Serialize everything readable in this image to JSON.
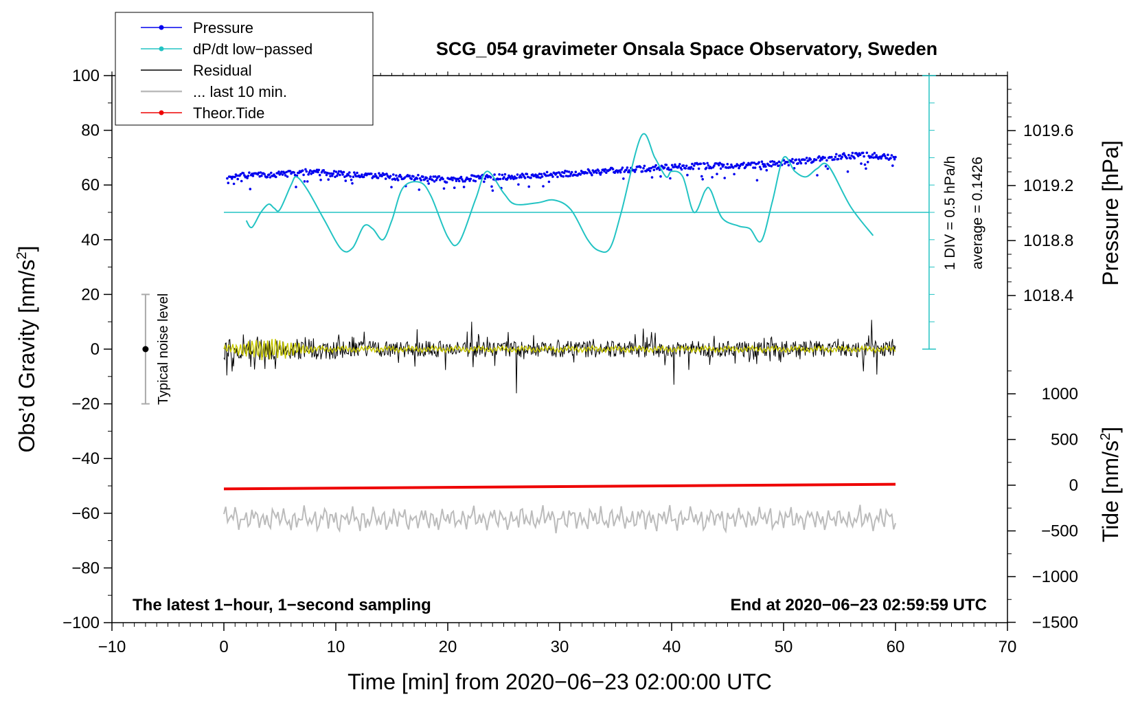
{
  "chart_data": {
    "type": "line",
    "title": "SCG_054 gravimeter Onsala Space Observatory, Sweden",
    "xlabel": "Time [min] from 2020−06−23 02:00:00 UTC",
    "ylabel_left": "Obs’d Gravity [nm/s",
    "ylabel_left_sup": "2",
    "ylabel_left_end": "]",
    "ylabel_right_pressure": "Pressure [hPa]",
    "ylabel_right_tide": "Tide [nm/s",
    "ylabel_right_tide_sup": "2",
    "ylabel_right_tide_end": "]",
    "xlim": [
      -10,
      70
    ],
    "ylim": [
      -100,
      100
    ],
    "x_ticks": [
      "−10",
      "0",
      "10",
      "20",
      "30",
      "40",
      "50",
      "60",
      "70"
    ],
    "y_ticks": [
      "100",
      "80",
      "60",
      "40",
      "20",
      "0",
      "−20",
      "−40",
      "−60",
      "−80",
      "−100"
    ],
    "pressure_ticks": [
      "1019.6",
      "1019.2",
      "1018.8",
      "1018.4"
    ],
    "tide_ticks": [
      "1000",
      "500",
      "0",
      "−500",
      "−1000",
      "−1500"
    ],
    "legend": [
      {
        "label": "Pressure",
        "color": "#0000ee",
        "marker": true
      },
      {
        "label": "dP/dt low−passed",
        "color": "#22c3c3",
        "marker": true
      },
      {
        "label": "Residual",
        "color": "#000000",
        "marker": false
      },
      {
        "label": "... last 10 min.",
        "color": "#bbbbbb",
        "marker": false
      },
      {
        "label": "Theor.Tide",
        "color": "#ee0000",
        "marker": true
      }
    ],
    "noise_label": "Typical noise level",
    "noise_range": [
      -20,
      20
    ],
    "dpdt_scale_label": "1 DIV = 0.5 hPa/h",
    "dpdt_average_label": "average = 0.1426",
    "dpdt_baseline": 50,
    "footer_left": "The latest 1−hour, 1−second sampling",
    "footer_right": "End at 2020−06−23 02:59:59 UTC",
    "series": [
      {
        "name": "Pressure",
        "color": "#0000ee",
        "x": [
          0.3,
          5,
          8,
          10,
          15,
          20,
          25,
          30,
          34,
          38,
          42,
          46,
          50,
          54,
          57,
          60
        ],
        "y": [
          63,
          64,
          65,
          64,
          63,
          62,
          63,
          64,
          65,
          66,
          67,
          67,
          68,
          70,
          71,
          70
        ]
      },
      {
        "name": "dP/dt low-passed",
        "color": "#22c3c3",
        "x": [
          2,
          2.5,
          3.3,
          4,
          4.5,
          5,
          6,
          6.5,
          7.5,
          9,
          10.5,
          11.5,
          12.5,
          13.3,
          14.2,
          15,
          16,
          17.5,
          18.5,
          20,
          21,
          22.5,
          23.5,
          25,
          26,
          28,
          29.5,
          31,
          32.5,
          33.5,
          34.5,
          35.5,
          37.3,
          38.5,
          39.5,
          40,
          41,
          42,
          43,
          43.5,
          44.5,
          46,
          47,
          48,
          49,
          50,
          51,
          52,
          53,
          54,
          56,
          58
        ],
        "y": [
          47,
          44.5,
          50,
          53,
          51.5,
          51,
          60,
          63,
          58,
          47,
          36.5,
          37,
          45,
          44,
          40,
          47,
          59,
          61,
          56,
          41,
          39,
          55,
          65,
          57,
          53,
          53.5,
          54.5,
          51,
          40,
          36,
          37,
          50,
          78,
          70,
          63,
          65,
          63,
          50,
          58,
          58,
          48,
          45,
          44,
          39.5,
          54,
          70,
          65,
          63,
          66,
          67,
          52,
          41.5
        ]
      },
      {
        "name": "Residual",
        "color": "#000000",
        "x_range": [
          0,
          60
        ],
        "center": 0,
        "amplitude": 4
      },
      {
        "name": "... last 10 min.",
        "color": "#bbbbbb",
        "x_range": [
          0,
          60
        ],
        "center": -62,
        "amplitude": 3
      },
      {
        "name": "Theor.Tide",
        "color": "#ee0000",
        "x": [
          0,
          60
        ],
        "tide_values": [
          -40,
          10
        ]
      }
    ]
  }
}
